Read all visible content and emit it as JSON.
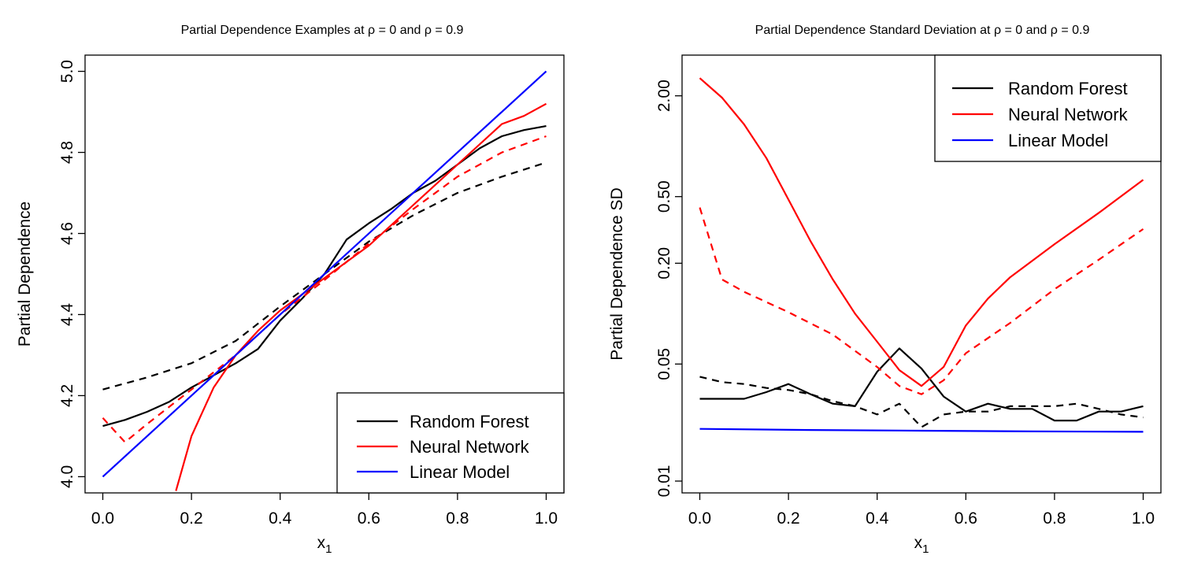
{
  "chart_data": [
    {
      "type": "line",
      "title": "Partial Dependence Examples at ρ = 0 and ρ = 0.9",
      "xlabel": "x",
      "xlabel_sub": "1",
      "ylabel": "Partial Dependence",
      "xlim": [
        0,
        1
      ],
      "ylim": [
        3.96,
        5.04
      ],
      "xticks": [
        "0.0",
        "0.2",
        "0.4",
        "0.6",
        "0.8",
        "1.0"
      ],
      "xtick_values": [
        0,
        0.2,
        0.4,
        0.6,
        0.8,
        1.0
      ],
      "yticks": [
        "4.0",
        "4.2",
        "4.4",
        "4.6",
        "4.8",
        "5.0"
      ],
      "ytick_values": [
        4.0,
        4.2,
        4.4,
        4.6,
        4.8,
        5.0
      ],
      "log_y": false,
      "legend_position": "bottom-right",
      "legend": [
        {
          "label": "Random Forest",
          "color": "#000000"
        },
        {
          "label": "Neural Network",
          "color": "#ff0000"
        },
        {
          "label": "Linear Model",
          "color": "#0000ff"
        }
      ],
      "series": [
        {
          "legend_index": 0,
          "color": "#000000",
          "dashed": false,
          "x": [
            0,
            0.05,
            0.1,
            0.15,
            0.2,
            0.25,
            0.3,
            0.35,
            0.4,
            0.45,
            0.5,
            0.55,
            0.6,
            0.65,
            0.7,
            0.75,
            0.8,
            0.85,
            0.9,
            0.95,
            1.0
          ],
          "y": [
            4.125,
            4.14,
            4.16,
            4.185,
            4.22,
            4.25,
            4.28,
            4.315,
            4.385,
            4.44,
            4.5,
            4.585,
            4.625,
            4.66,
            4.7,
            4.73,
            4.77,
            4.81,
            4.84,
            4.855,
            4.865
          ]
        },
        {
          "legend_index": 0,
          "color": "#000000",
          "dashed": true,
          "x": [
            0,
            0.1,
            0.2,
            0.3,
            0.4,
            0.5,
            0.6,
            0.7,
            0.8,
            0.9,
            1.0
          ],
          "y": [
            4.215,
            4.245,
            4.28,
            4.335,
            4.42,
            4.5,
            4.58,
            4.645,
            4.7,
            4.74,
            4.775
          ]
        },
        {
          "legend_index": 1,
          "color": "#ff0000",
          "dashed": false,
          "x": [
            0.165,
            0.2,
            0.25,
            0.3,
            0.35,
            0.4,
            0.5,
            0.6,
            0.7,
            0.8,
            0.9,
            0.95,
            1.0
          ],
          "y": [
            3.965,
            4.1,
            4.22,
            4.3,
            4.36,
            4.41,
            4.49,
            4.57,
            4.67,
            4.77,
            4.87,
            4.89,
            4.92
          ]
        },
        {
          "legend_index": 1,
          "color": "#ff0000",
          "dashed": true,
          "x": [
            0,
            0.05,
            0.1,
            0.2,
            0.3,
            0.4,
            0.5,
            0.6,
            0.7,
            0.8,
            0.9,
            1.0
          ],
          "y": [
            4.145,
            4.085,
            4.13,
            4.215,
            4.3,
            4.4,
            4.485,
            4.575,
            4.66,
            4.74,
            4.8,
            4.84
          ]
        },
        {
          "legend_index": 2,
          "color": "#0000ff",
          "dashed": false,
          "x": [
            0,
            1.0
          ],
          "y": [
            4.0,
            5.0
          ]
        }
      ]
    },
    {
      "type": "line",
      "title": "Partial Dependence Standard Deviation at ρ = 0 and ρ = 0.9",
      "xlabel": "x",
      "xlabel_sub": "1",
      "ylabel": "Partial Dependence SD",
      "xlim": [
        0,
        1
      ],
      "ylim": [
        0.0085,
        3.5
      ],
      "xticks": [
        "0.0",
        "0.2",
        "0.4",
        "0.6",
        "0.8",
        "1.0"
      ],
      "xtick_values": [
        0,
        0.2,
        0.4,
        0.6,
        0.8,
        1.0
      ],
      "yticks": [
        "0.01",
        "0.05",
        "0.20",
        "0.50",
        "2.00"
      ],
      "ytick_values": [
        0.01,
        0.05,
        0.2,
        0.5,
        2.0
      ],
      "log_y": true,
      "legend_position": "top-right",
      "legend": [
        {
          "label": "Random Forest",
          "color": "#000000"
        },
        {
          "label": "Neural Network",
          "color": "#ff0000"
        },
        {
          "label": "Linear Model",
          "color": "#0000ff"
        }
      ],
      "series": [
        {
          "legend_index": 0,
          "color": "#000000",
          "dashed": false,
          "x": [
            0,
            0.05,
            0.1,
            0.15,
            0.2,
            0.25,
            0.3,
            0.35,
            0.4,
            0.45,
            0.5,
            0.55,
            0.6,
            0.65,
            0.7,
            0.75,
            0.8,
            0.85,
            0.9,
            0.95,
            1.0
          ],
          "y": [
            0.031,
            0.031,
            0.031,
            0.034,
            0.038,
            0.033,
            0.029,
            0.028,
            0.045,
            0.062,
            0.047,
            0.032,
            0.026,
            0.029,
            0.027,
            0.027,
            0.023,
            0.023,
            0.026,
            0.026,
            0.028
          ]
        },
        {
          "legend_index": 0,
          "color": "#000000",
          "dashed": true,
          "x": [
            0,
            0.05,
            0.1,
            0.15,
            0.2,
            0.25,
            0.3,
            0.35,
            0.4,
            0.45,
            0.5,
            0.55,
            0.6,
            0.65,
            0.7,
            0.75,
            0.8,
            0.85,
            0.9,
            0.95,
            1.0
          ],
          "y": [
            0.042,
            0.039,
            0.038,
            0.036,
            0.035,
            0.033,
            0.03,
            0.028,
            0.025,
            0.029,
            0.021,
            0.025,
            0.026,
            0.026,
            0.028,
            0.028,
            0.028,
            0.029,
            0.027,
            0.025,
            0.024
          ]
        },
        {
          "legend_index": 1,
          "color": "#ff0000",
          "dashed": false,
          "x": [
            0,
            0.05,
            0.1,
            0.15,
            0.2,
            0.25,
            0.3,
            0.35,
            0.4,
            0.45,
            0.5,
            0.55,
            0.6,
            0.65,
            0.7,
            0.8,
            0.9,
            1.0
          ],
          "y": [
            2.55,
            1.95,
            1.35,
            0.85,
            0.48,
            0.27,
            0.16,
            0.1,
            0.068,
            0.046,
            0.037,
            0.048,
            0.085,
            0.123,
            0.165,
            0.26,
            0.4,
            0.63
          ]
        },
        {
          "legend_index": 1,
          "color": "#ff0000",
          "dashed": true,
          "x": [
            0,
            0.05,
            0.1,
            0.2,
            0.3,
            0.4,
            0.45,
            0.5,
            0.55,
            0.6,
            0.7,
            0.8,
            0.9,
            1.0
          ],
          "y": [
            0.43,
            0.16,
            0.135,
            0.102,
            0.075,
            0.048,
            0.037,
            0.033,
            0.04,
            0.058,
            0.088,
            0.14,
            0.21,
            0.32
          ]
        },
        {
          "legend_index": 2,
          "color": "#0000ff",
          "dashed": false,
          "x": [
            0,
            0.25,
            0.5,
            0.75,
            1.0
          ],
          "y": [
            0.0205,
            0.0202,
            0.02,
            0.0198,
            0.0197
          ]
        }
      ]
    }
  ]
}
